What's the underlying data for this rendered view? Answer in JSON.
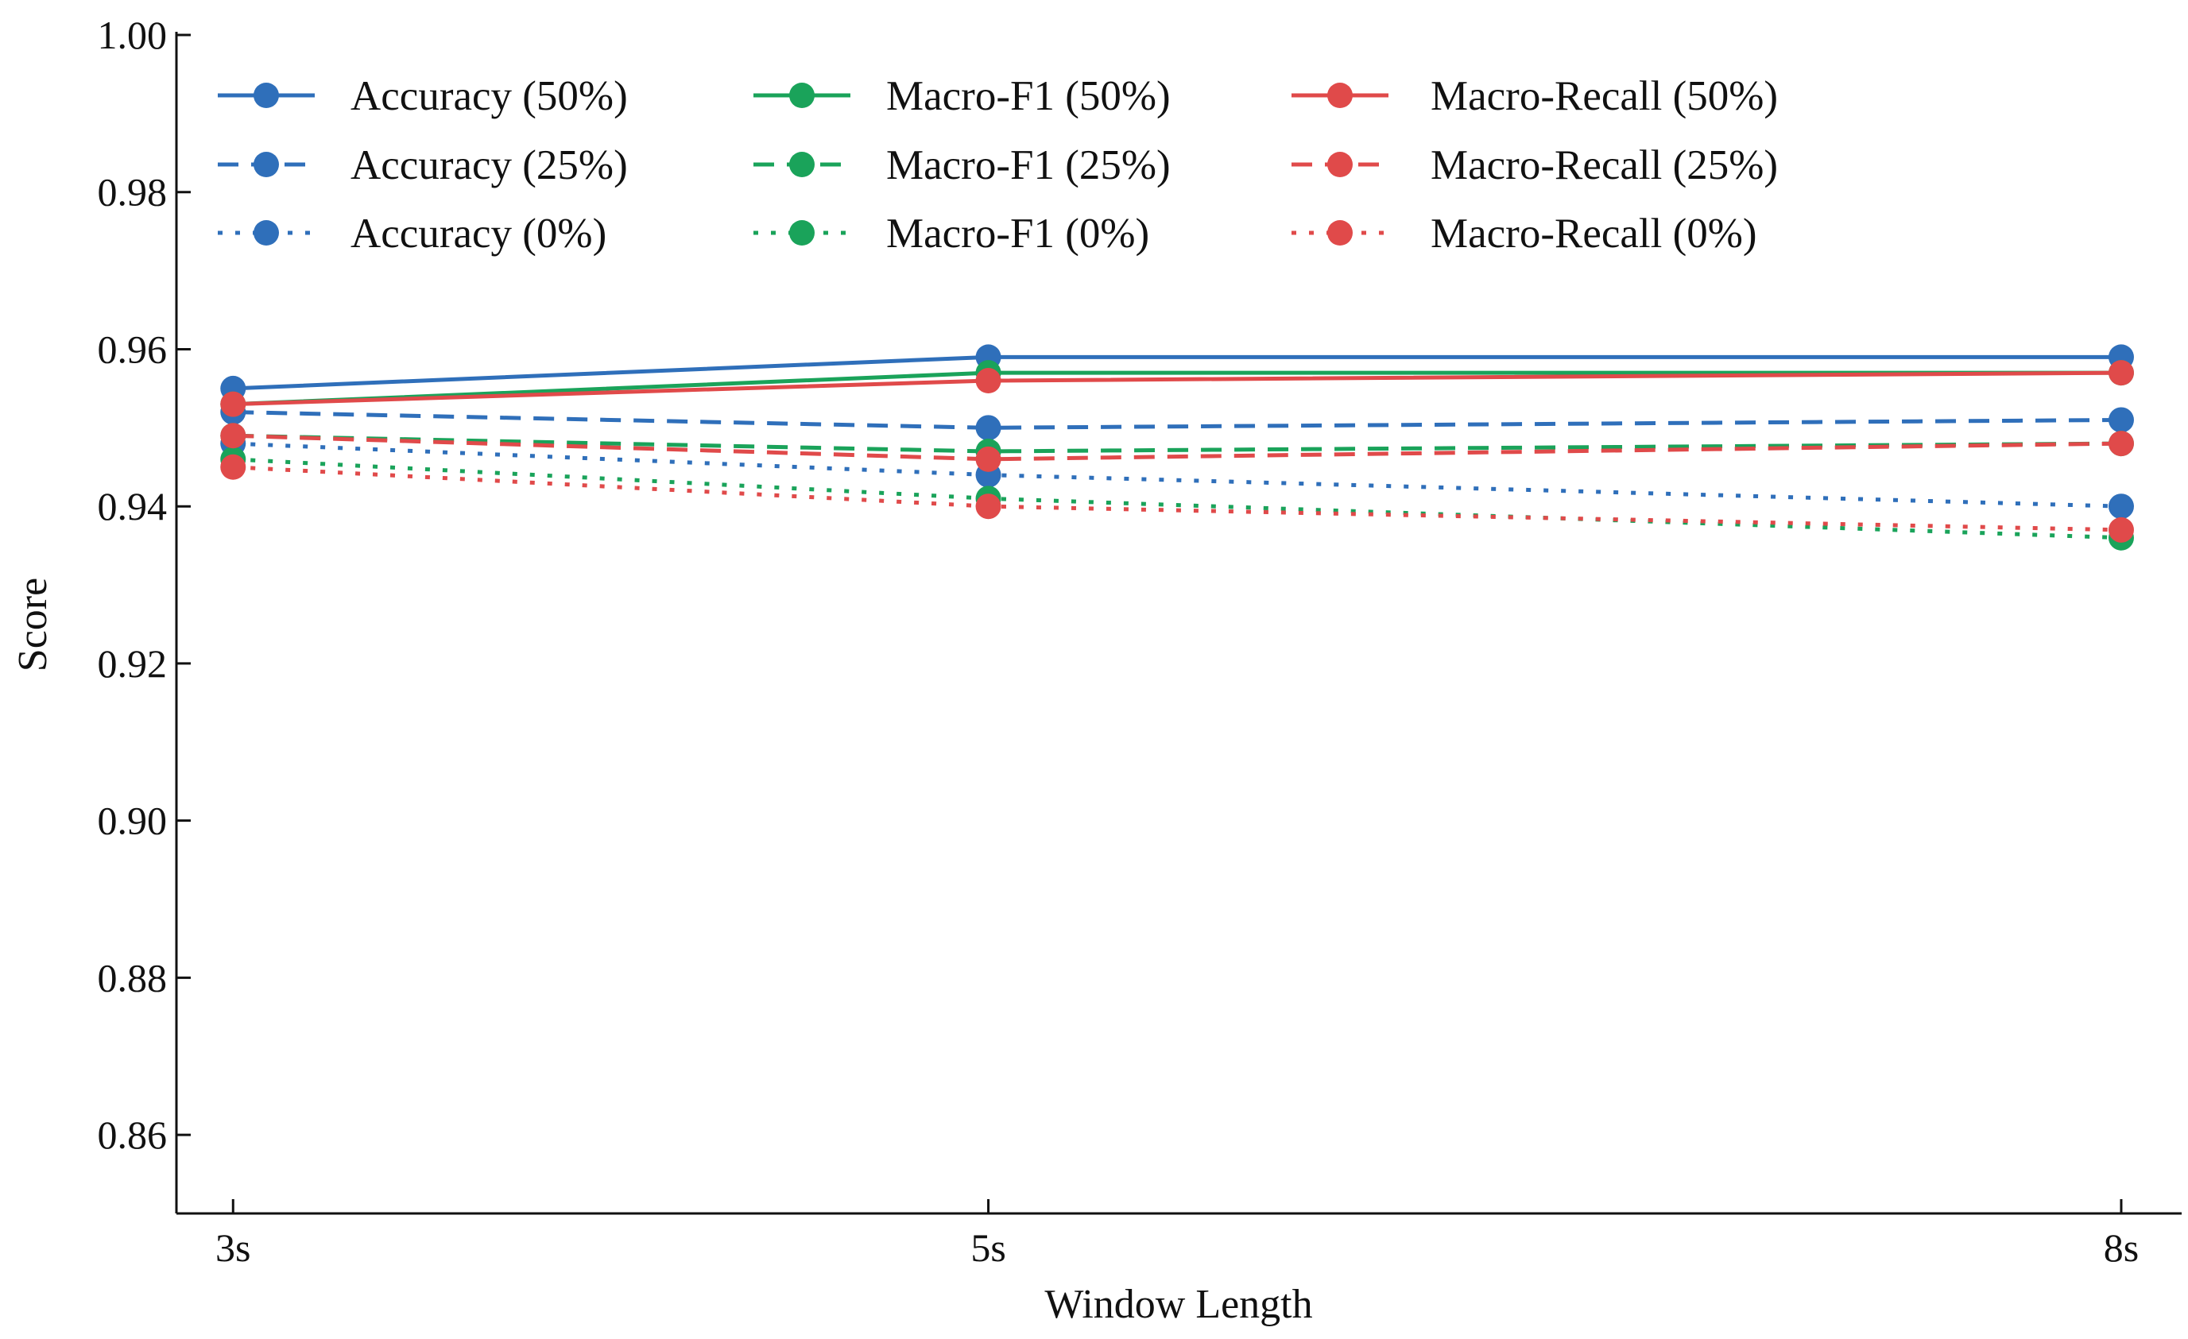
{
  "chart_data": {
    "type": "line",
    "title": "",
    "xlabel": "Window Length",
    "ylabel": "Score",
    "x": [
      3,
      5,
      8
    ],
    "x_tick_labels": [
      "3s",
      "5s",
      "8s"
    ],
    "xlim": [
      2.85,
      8.16
    ],
    "ylim": [
      0.85,
      1.0
    ],
    "y_ticks": [
      0.86,
      0.88,
      0.9,
      0.92,
      0.94,
      0.96,
      0.98,
      1.0
    ],
    "y_tick_labels": [
      "0.86",
      "0.88",
      "0.90",
      "0.92",
      "0.94",
      "0.96",
      "0.98",
      "1.00"
    ],
    "grid": false,
    "legend_position": "top-left",
    "colors": {
      "accuracy": "#2f6fba",
      "f1": "#1aa35a",
      "recall": "#e04a4a"
    },
    "series": [
      {
        "name": "Accuracy (50%)",
        "metric": "accuracy",
        "style": "solid",
        "values": [
          0.955,
          0.959,
          0.959
        ]
      },
      {
        "name": "Accuracy (25%)",
        "metric": "accuracy",
        "style": "dashed",
        "values": [
          0.952,
          0.95,
          0.951
        ]
      },
      {
        "name": "Accuracy (0%)",
        "metric": "accuracy",
        "style": "dotted",
        "values": [
          0.948,
          0.944,
          0.94
        ]
      },
      {
        "name": "Macro-F1 (50%)",
        "metric": "f1",
        "style": "solid",
        "values": [
          0.953,
          0.957,
          0.957
        ]
      },
      {
        "name": "Macro-F1 (25%)",
        "metric": "f1",
        "style": "dashed",
        "values": [
          0.949,
          0.947,
          0.948
        ]
      },
      {
        "name": "Macro-F1 (0%)",
        "metric": "f1",
        "style": "dotted",
        "values": [
          0.946,
          0.941,
          0.936
        ]
      },
      {
        "name": "Macro-Recall (50%)",
        "metric": "recall",
        "style": "solid",
        "values": [
          0.953,
          0.956,
          0.957
        ]
      },
      {
        "name": "Macro-Recall (25%)",
        "metric": "recall",
        "style": "dashed",
        "values": [
          0.949,
          0.946,
          0.948
        ]
      },
      {
        "name": "Macro-Recall (0%)",
        "metric": "recall",
        "style": "dotted",
        "values": [
          0.945,
          0.94,
          0.937
        ]
      }
    ]
  }
}
